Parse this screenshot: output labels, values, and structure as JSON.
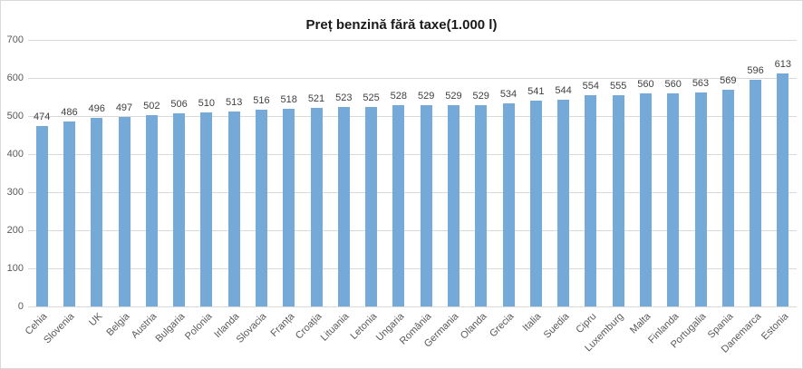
{
  "chart_data": {
    "type": "bar",
    "title": "Preț benzină fără taxe(1.000 l)",
    "categories": [
      "Cehia",
      "Slovenia",
      "UK",
      "Belgia",
      "Austria",
      "Bulgaria",
      "Polonia",
      "Irlanda",
      "Slovacia",
      "Franța",
      "Croația",
      "Lituania",
      "Letonia",
      "Ungaria",
      "România",
      "Germania",
      "Olanda",
      "Grecia",
      "Italia",
      "Suedia",
      "Cipru",
      "Luxemburg",
      "Malta",
      "Finlanda",
      "Portugalia",
      "Spania",
      "Danemarca",
      "Estonia"
    ],
    "values": [
      474,
      486,
      496,
      497,
      502,
      506,
      510,
      513,
      516,
      518,
      521,
      523,
      525,
      528,
      529,
      529,
      529,
      534,
      541,
      544,
      554,
      555,
      560,
      560,
      563,
      569,
      596,
      613
    ],
    "xlabel": "",
    "ylabel": "",
    "ylim": [
      0,
      700
    ],
    "ytick_step": 100,
    "ytick_labels": [
      "0",
      "100",
      "200",
      "300",
      "400",
      "500",
      "600",
      "700"
    ],
    "grid": true,
    "legend": false,
    "data_labels": true,
    "colors": {
      "bar": "#74a9d8",
      "gridline": "#d9d9d9",
      "axis_label": "#595959",
      "value_label": "#404040",
      "title": "#1a1a1a"
    }
  }
}
